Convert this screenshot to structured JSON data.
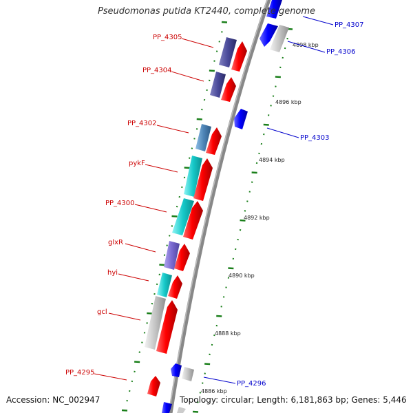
{
  "title": "Pseudomonas putida KT2440, complete genome",
  "footer": {
    "accession": "Accession: NC_002947",
    "summary": "Topology: circular; Length: 6,181,863 bp; Genes: 5,446"
  },
  "colors": {
    "forward_label": "#cc0000",
    "reverse_label": "#0000cc",
    "backbone": "#888888",
    "tick_mark": "#1a7f1a",
    "cds_forward": "#ff0000",
    "cds_reverse": "#0000ff",
    "gene_navy": "#4a4a9a",
    "gene_steelblue": "#4f86b8",
    "gene_cyan": "#16c9c9",
    "gene_violet": "#7a6ad0",
    "gene_gray": "#c4c4c4"
  },
  "tick_labels": [
    "4898 kbp",
    "4896 kbp",
    "4894 kbp",
    "4892 kbp",
    "4890 kbp",
    "4888 kbp",
    "4886 kbp"
  ],
  "forward_genes": [
    {
      "label": "PP_4305",
      "feature": "gene_navy"
    },
    {
      "label": "PP_4304",
      "feature": "gene_navy"
    },
    {
      "label": "PP_4302",
      "feature": "gene_steelblue"
    },
    {
      "label": "pykF",
      "feature": "gene_cyan"
    },
    {
      "label": "PP_4300",
      "feature": "gene_cyan"
    },
    {
      "label": "glxR",
      "feature": "gene_violet"
    },
    {
      "label": "hyi",
      "feature": "gene_cyan"
    },
    {
      "label": "gcl",
      "feature": "gene_gray"
    },
    {
      "label": "PP_4295",
      "feature": "none"
    }
  ],
  "reverse_genes": [
    {
      "label": "PP_4307"
    },
    {
      "label": "PP_4306"
    },
    {
      "label": "PP_4303"
    },
    {
      "label": "PP_4296"
    }
  ]
}
